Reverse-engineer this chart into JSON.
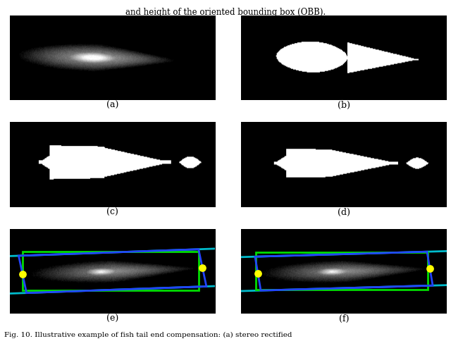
{
  "figsize": [
    6.4,
    4.91
  ],
  "dpi": 100,
  "top_text": "and height of the oriented bounding box (OBB).",
  "bottom_text": "Fig. 10. Illustrative example of fish tail end compensation: (a) stereo rectified",
  "labels": [
    "(a)",
    "(b)",
    "(c)",
    "(d)",
    "(e)",
    "(f)"
  ],
  "label_fontsize": 9,
  "bg_color": "#ffffff",
  "panel_bg": "#000000",
  "panel_e": {
    "green_color": "#00dd00",
    "blue_color": "#2244ff",
    "cyan_color": "#00bbcc",
    "yellow_color": "#ffff00",
    "dot_size": 60
  },
  "panel_f": {
    "green_color": "#00dd00",
    "blue_color": "#2244ff",
    "cyan_color": "#00bbcc",
    "yellow_color": "#ffff00",
    "dot_size": 60
  }
}
